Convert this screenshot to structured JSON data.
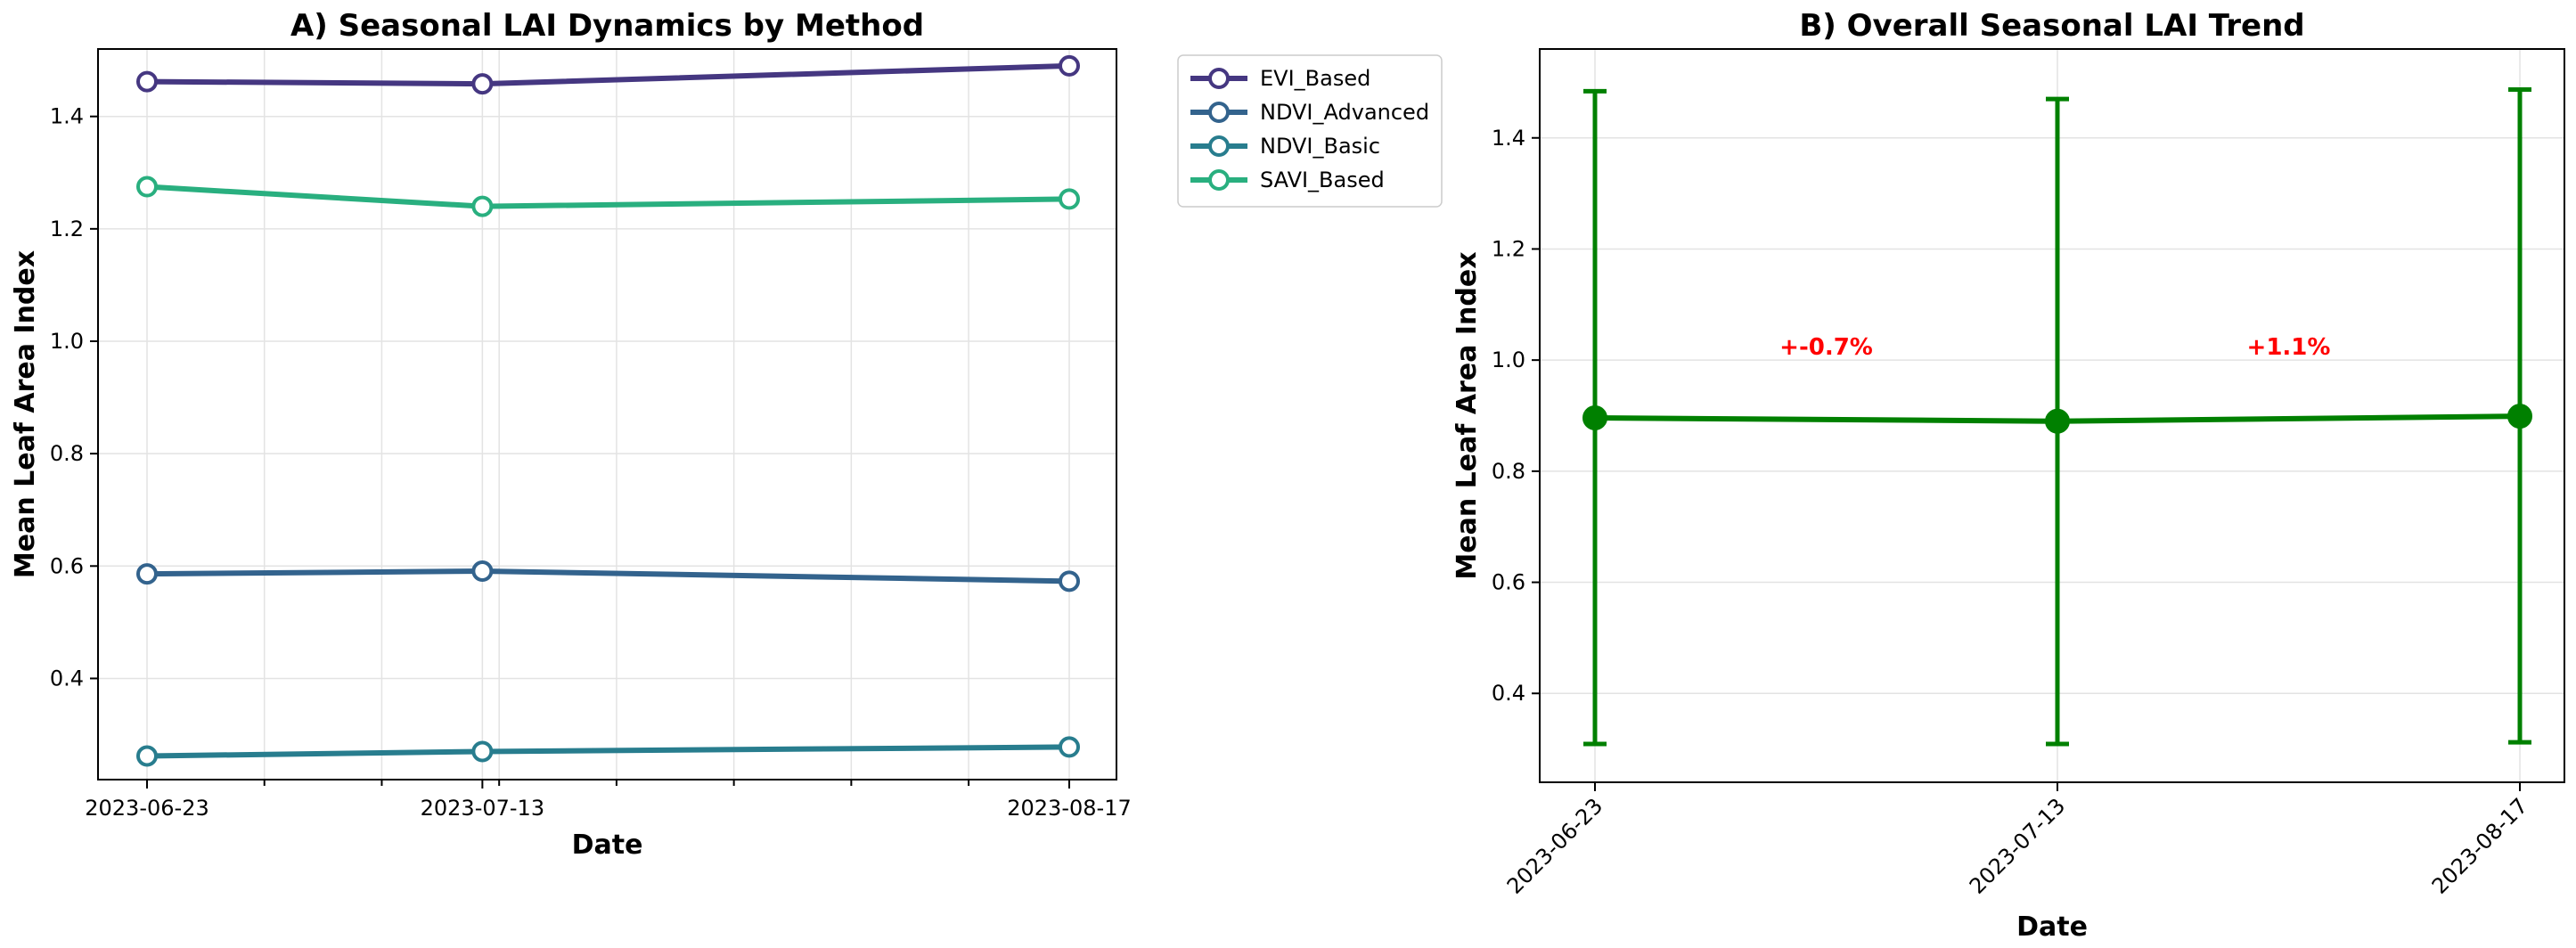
{
  "chart_data": [
    {
      "type": "line",
      "title": "A) Seasonal LAI Dynamics by Method",
      "xlabel": "Date",
      "ylabel": "Mean Leaf Area Index",
      "x": [
        "2023-06-23",
        "2023-07-13",
        "2023-08-17"
      ],
      "x_ticks": [
        "2023-06-23",
        "2023-07-13",
        "2023-08-17"
      ],
      "ylim": [
        0.22,
        1.52
      ],
      "y_ticks": [
        "0.4",
        "0.6",
        "0.8",
        "1.0",
        "1.2",
        "1.4"
      ],
      "grid": true,
      "legend_placement": "outside right",
      "series": [
        {
          "name": "EVI_Based",
          "color": "#453781",
          "values": [
            1.462,
            1.458,
            1.49
          ]
        },
        {
          "name": "NDVI_Advanced",
          "color": "#33638d",
          "values": [
            0.586,
            0.591,
            0.573
          ]
        },
        {
          "name": "NDVI_Basic",
          "color": "#287d8e",
          "values": [
            0.262,
            0.27,
            0.278
          ]
        },
        {
          "name": "SAVI_Based",
          "color": "#29af7f",
          "values": [
            1.275,
            1.24,
            1.253
          ]
        }
      ]
    },
    {
      "type": "line",
      "title": "B) Overall Seasonal LAI Trend",
      "xlabel": "Date",
      "ylabel": "Mean Leaf Area Index",
      "x": [
        "2023-06-23",
        "2023-07-13",
        "2023-08-17"
      ],
      "x_ticks": [
        "2023-06-23",
        "2023-07-13",
        "2023-08-17"
      ],
      "ylim": [
        0.24,
        1.56
      ],
      "y_ticks": [
        "0.4",
        "0.6",
        "0.8",
        "1.0",
        "1.2",
        "1.4"
      ],
      "grid": true,
      "series": [
        {
          "color": "#008000",
          "values": [
            0.896,
            0.89,
            0.899
          ],
          "error_low": [
            0.309,
            0.309,
            0.312
          ],
          "error_high": [
            1.484,
            1.47,
            1.487
          ]
        }
      ],
      "annotations": [
        {
          "text": "+-0.7%",
          "color": "#ff0000",
          "x": 0.5,
          "y": 1.01
        },
        {
          "text": "+1.1%",
          "color": "#ff0000",
          "x": 1.5,
          "y": 1.01
        }
      ]
    }
  ]
}
